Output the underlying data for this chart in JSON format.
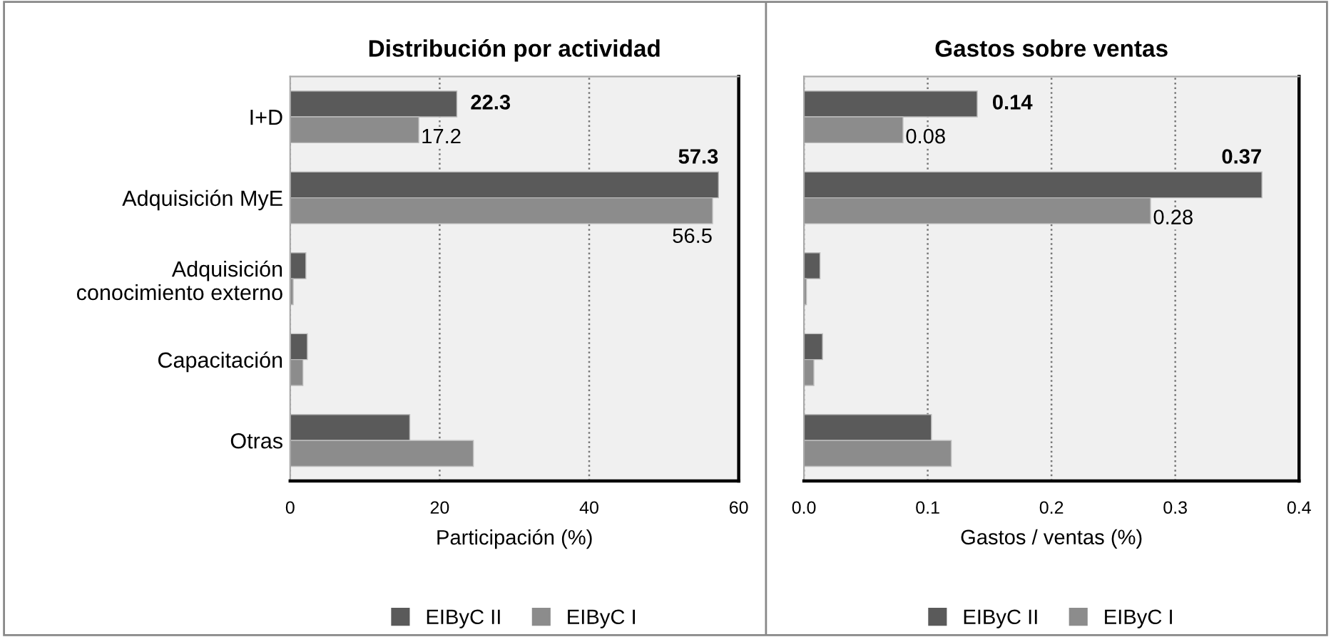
{
  "chart_data": [
    {
      "type": "bar",
      "orientation": "horizontal",
      "title": "Distribución por actividad",
      "xlabel": "Participación (%)",
      "categories": [
        "I+D",
        "Adquisición MyE",
        "Adquisición\nconocimiento externo",
        "Capacitación",
        "Otras"
      ],
      "series": [
        {
          "name": "EIByC II",
          "color": "#5a5a5a",
          "values": [
            22.3,
            57.3,
            2.1,
            2.3,
            16.0
          ],
          "value_labels": [
            "22.3",
            "57.3",
            null,
            null,
            null
          ]
        },
        {
          "name": "EIByC I",
          "color": "#8c8c8c",
          "values": [
            17.2,
            56.5,
            0.4,
            1.7,
            24.5
          ],
          "value_labels": [
            "17.2",
            "56.5",
            null,
            null,
            null
          ]
        }
      ],
      "xlim": [
        0,
        60
      ],
      "xticks": [
        0,
        20,
        40,
        60
      ],
      "grid": "x",
      "legend": "bottom"
    },
    {
      "type": "bar",
      "orientation": "horizontal",
      "title": "Gastos sobre ventas",
      "xlabel": "Gastos / ventas (%)",
      "categories": [
        null,
        null,
        null,
        null,
        null
      ],
      "series": [
        {
          "name": "EIByC II",
          "color": "#5a5a5a",
          "values": [
            0.14,
            0.37,
            0.013,
            0.015,
            0.103
          ],
          "value_labels": [
            "0.14",
            "0.37",
            null,
            null,
            null
          ]
        },
        {
          "name": "EIByC I",
          "color": "#8c8c8c",
          "values": [
            0.08,
            0.28,
            0.002,
            0.008,
            0.119
          ],
          "value_labels": [
            "0.08",
            "0.28",
            null,
            null,
            null
          ]
        }
      ],
      "xlim": [
        0,
        0.4
      ],
      "xticks": [
        {
          "value": 0,
          "label": "0.0"
        },
        0.1,
        0.2,
        0.3,
        0.4
      ],
      "grid": "x",
      "legend": "bottom"
    }
  ]
}
